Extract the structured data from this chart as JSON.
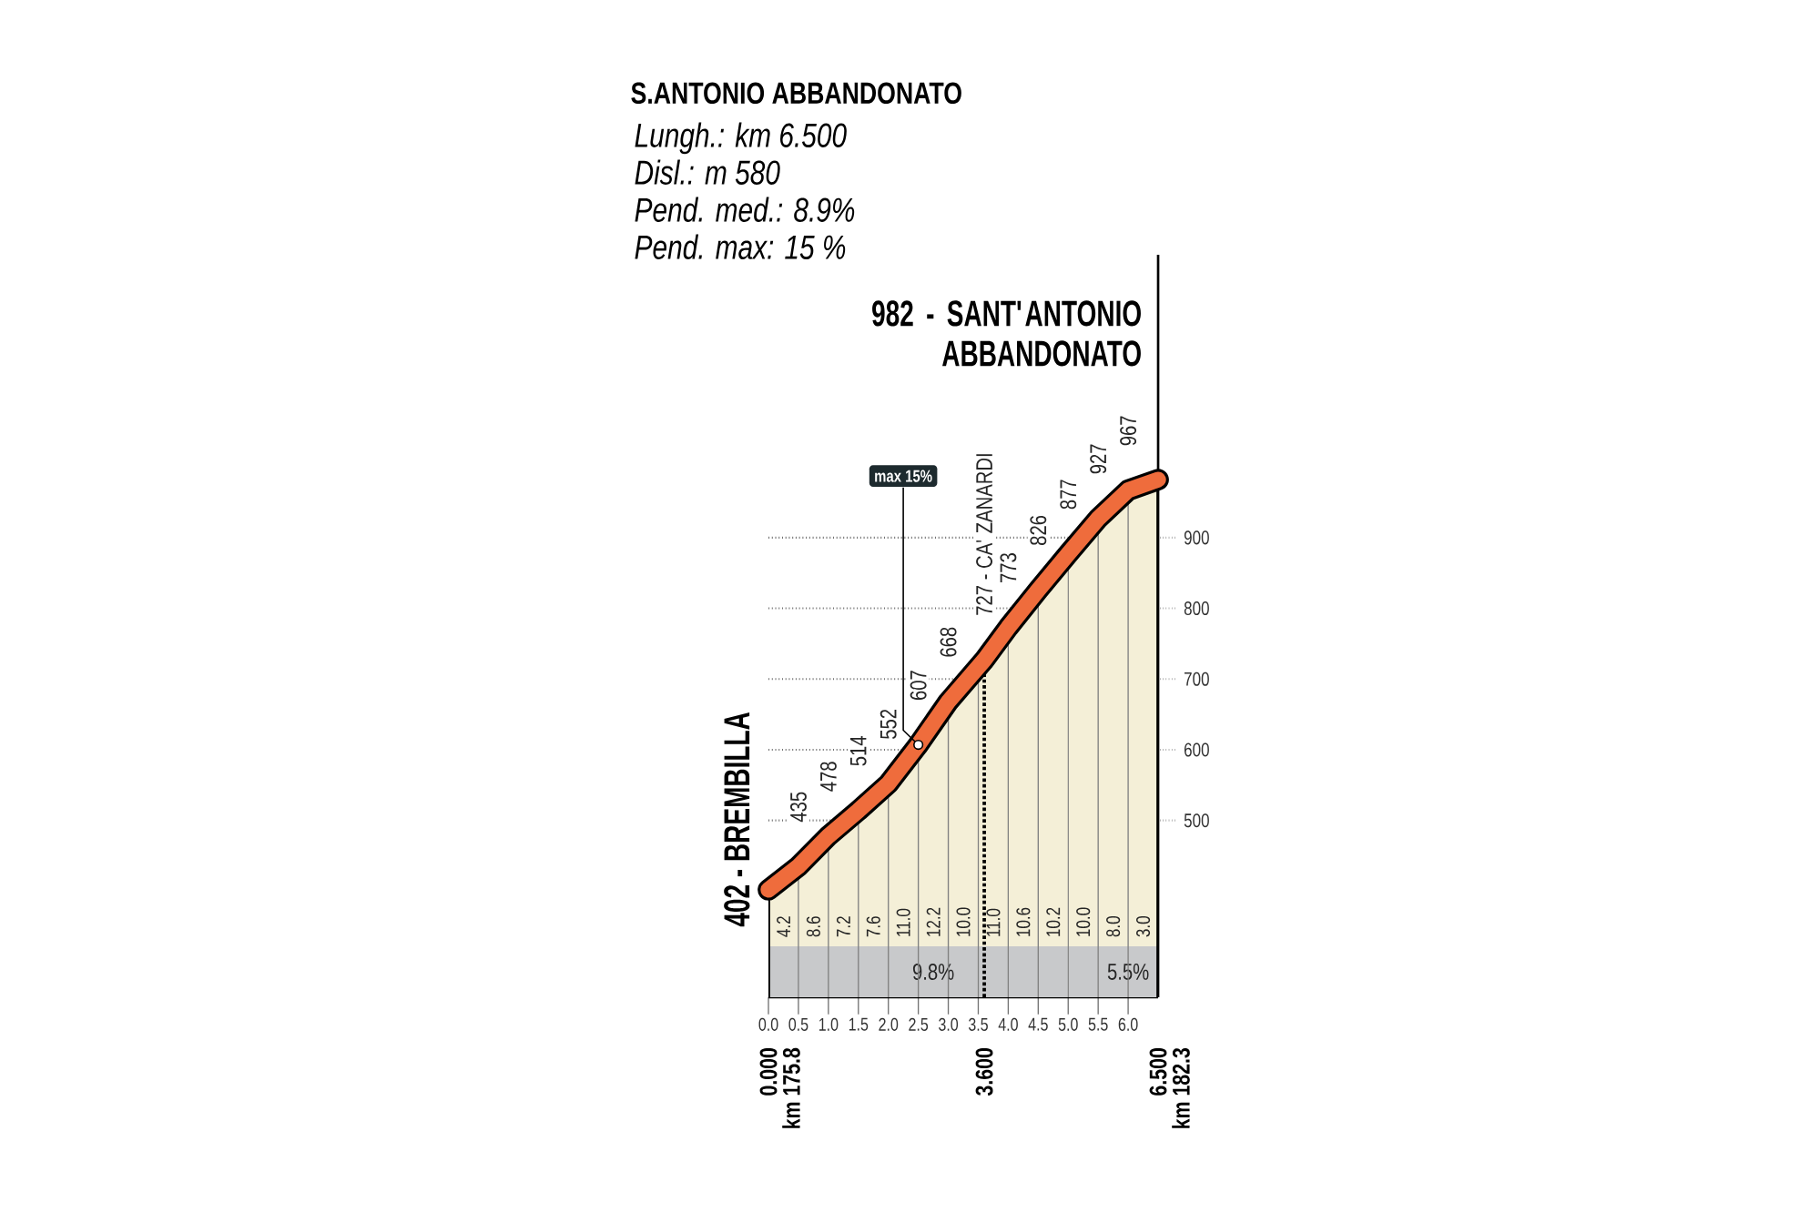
{
  "chart_data": {
    "type": "area",
    "title": "S.ANTONIO ABBANDONATO",
    "annotations": [
      "Lungh.: km 6.500",
      "Disl.: m 580",
      "Pend. med.: 8.9%",
      "Pend. max: 15 %",
      {
        "text": "max 15%",
        "x": 2.5,
        "y": 607
      },
      "4.2",
      "8.6",
      "7.2",
      "7.6",
      "11.0",
      "12.2",
      "10.0",
      "11.0",
      "10.6",
      "10.2",
      "10.0",
      "8.0",
      "3.0"
    ],
    "x": [
      0,
      0.5,
      1,
      1.5,
      2,
      2.5,
      3,
      3.6,
      4,
      4.5,
      5,
      5.5,
      6,
      6.5
    ],
    "series": [
      {
        "color": "#ef6c3c",
        "values": [
          402,
          435,
          478,
          514,
          552,
          607,
          668,
          727,
          773,
          826,
          877,
          927,
          967,
          982
        ],
        "value_labels": [
          "402 - BREMBILLA",
          "435",
          "478",
          "514",
          "552",
          "607",
          "668",
          "727 - CA' ZANARDI",
          "773",
          "826",
          "877",
          "927",
          "967",
          "982 - SANT'ANTONIO ABBANDONATO"
        ]
      }
    ],
    "xlim": [
      0,
      6.5
    ],
    "xticks": [
      {
        "value": 0,
        "label": "0.0"
      },
      {
        "value": 0.5,
        "label": "0.5"
      },
      {
        "value": 1,
        "label": "1.0"
      },
      {
        "value": 1.5,
        "label": "1.5"
      },
      {
        "value": 2,
        "label": "2.0"
      },
      {
        "value": 2.5,
        "label": "2.5"
      },
      {
        "value": 3,
        "label": "3.0"
      },
      {
        "value": 3.5,
        "label": "3.5"
      },
      {
        "value": 4,
        "label": "4.0"
      },
      {
        "value": 4.5,
        "label": "4.5"
      },
      {
        "value": 5,
        "label": "5.0"
      },
      {
        "value": 5.5,
        "label": "5.5"
      },
      {
        "value": 6,
        "label": "6.0"
      }
    ],
    "x2lim": [
      0,
      6.5
    ],
    "x2ticks": [
      {
        "value": 0,
        "label": "0.000"
      },
      {
        "value": 3.6,
        "label": "3.600"
      },
      {
        "value": 6.5,
        "label": "6.500"
      }
    ],
    "ylim": [
      250,
      1300
    ],
    "yticks": [
      500,
      600,
      700,
      800,
      900
    ],
    "grid": true,
    "ref_lines": [
      {
        "axis": "x",
        "value": 0,
        "label": "km 175.8",
        "color": "#000000",
        "line_style": "solid"
      },
      {
        "axis": "x",
        "value": 3.6,
        "color": "#000000",
        "line_style": "dotted"
      },
      {
        "axis": "x",
        "value": 6.5,
        "label": "km 182.3",
        "color": "#000000",
        "line_style": "solid"
      }
    ],
    "bands": [
      {
        "axis": "x",
        "from": 0,
        "to": 5.5,
        "label": "9.8%",
        "color": "#c8c9cb"
      },
      {
        "axis": "x",
        "from": 5.5,
        "to": 6.5,
        "label": "5.5%",
        "color": "#c8c9cb"
      }
    ]
  }
}
